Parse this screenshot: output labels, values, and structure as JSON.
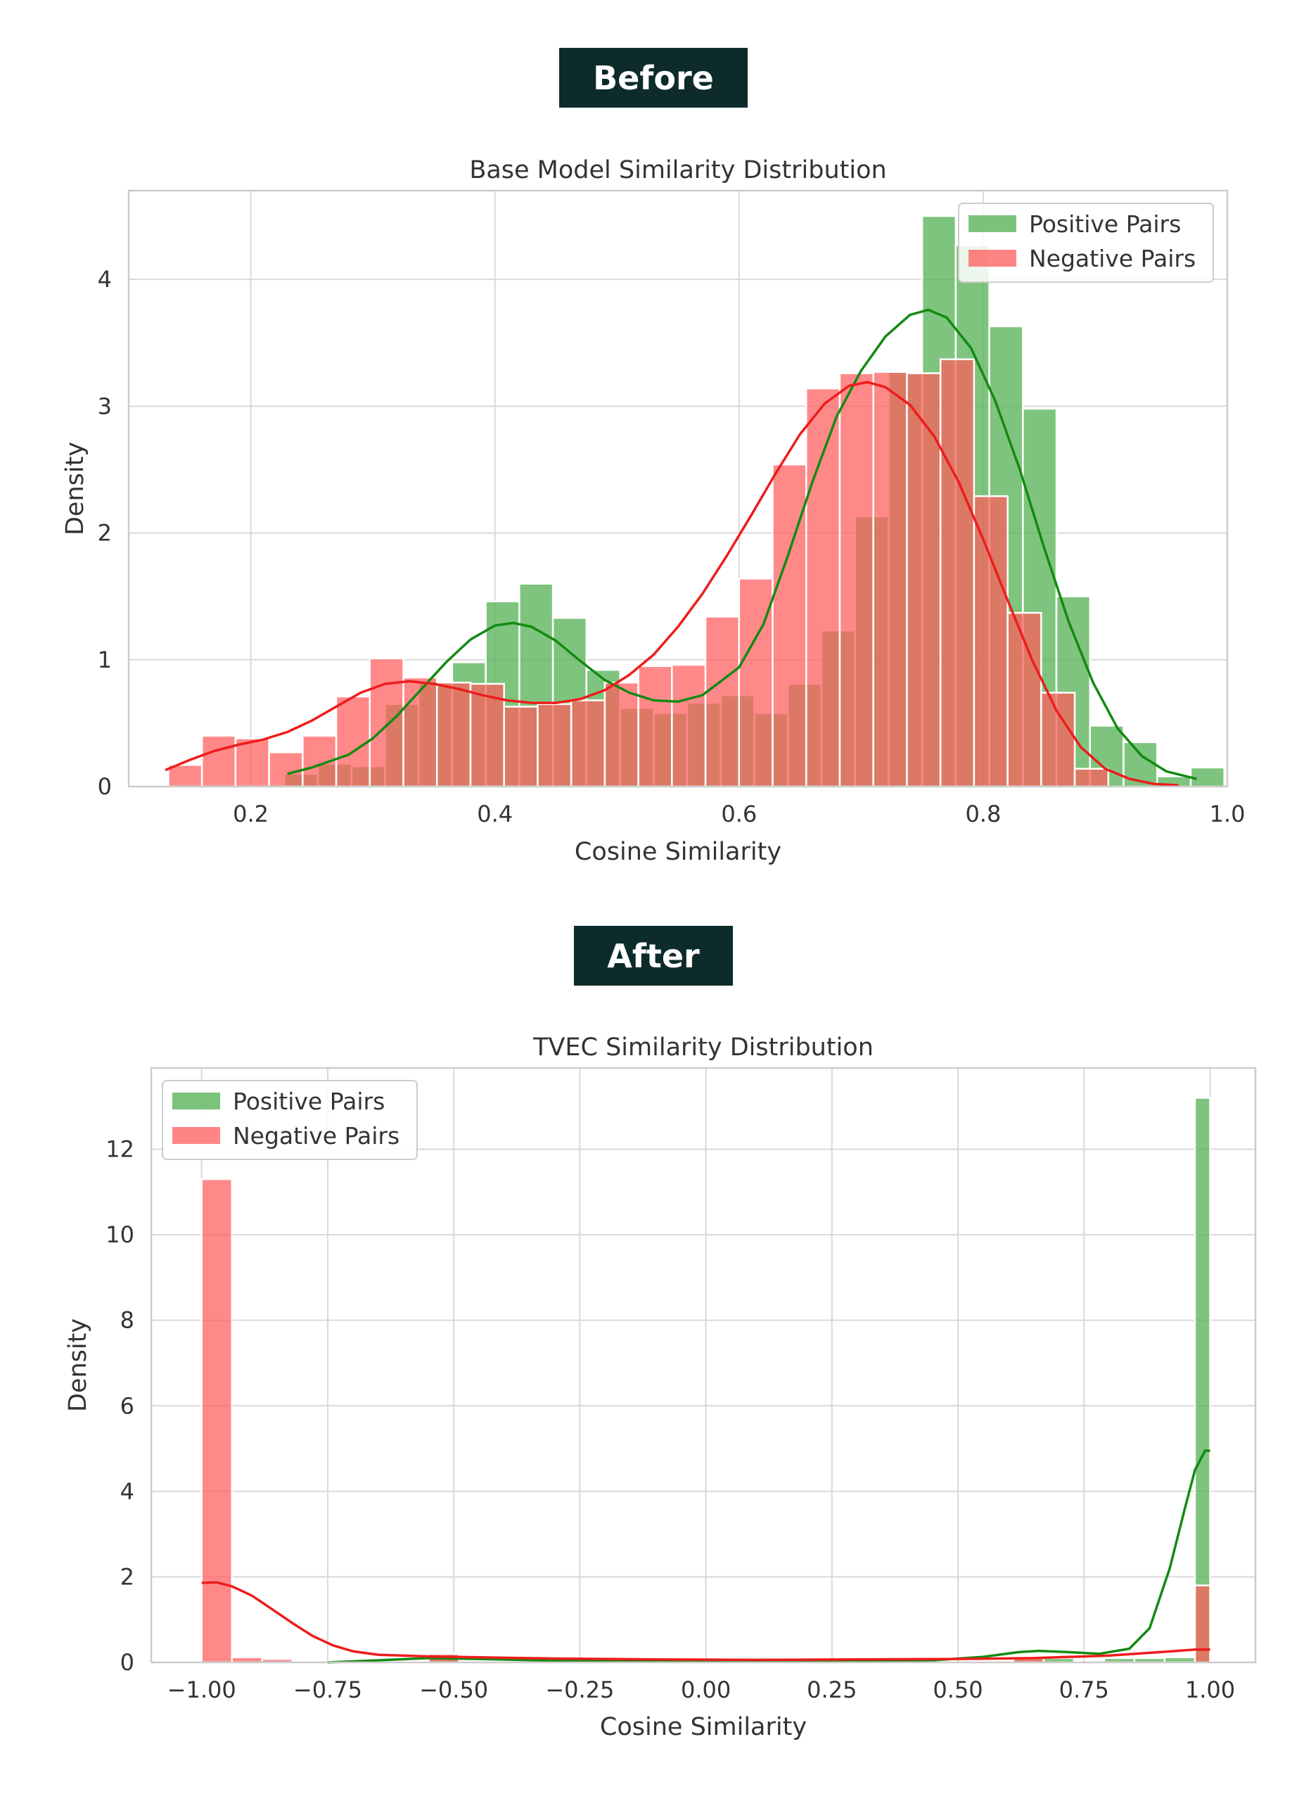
{
  "sections": {
    "before_label": "Before",
    "after_label": "After"
  },
  "colors": {
    "positive_fill": "#5ab45a",
    "negative_fill": "#ff5c5c",
    "positive_line": "#138a13",
    "negative_line": "#ee1c1c",
    "badge_bg": "#0e2b2b"
  },
  "chart_data": [
    {
      "type": "histogram",
      "title": "Base Model Similarity Distribution",
      "xlabel": "Cosine Similarity",
      "ylabel": "Density",
      "xlim": [
        0.1,
        1.0
      ],
      "ylim": [
        0,
        4.7
      ],
      "xticks": [
        "0.2",
        "0.4",
        "0.6",
        "0.8",
        "1.0"
      ],
      "xtick_values": [
        0.2,
        0.4,
        0.6,
        0.8,
        1.0
      ],
      "yticks": [
        "0",
        "1",
        "2",
        "3",
        "4"
      ],
      "ytick_values": [
        0,
        1,
        2,
        3,
        4
      ],
      "grid": true,
      "legend_position": "top-right",
      "series": [
        {
          "name": "Positive Pairs",
          "bins": [
            [
              0.2275,
              0.255,
              0.1
            ],
            [
              0.255,
              0.2825,
              0.18
            ],
            [
              0.2825,
              0.31,
              0.16
            ],
            [
              0.31,
              0.3375,
              0.65
            ],
            [
              0.3375,
              0.365,
              0.83
            ],
            [
              0.365,
              0.3925,
              0.98
            ],
            [
              0.3925,
              0.42,
              1.46
            ],
            [
              0.42,
              0.4475,
              1.6
            ],
            [
              0.4475,
              0.475,
              1.33
            ],
            [
              0.475,
              0.5025,
              0.92
            ],
            [
              0.5025,
              0.53,
              0.62
            ],
            [
              0.53,
              0.5575,
              0.58
            ],
            [
              0.5575,
              0.585,
              0.66
            ],
            [
              0.585,
              0.6125,
              0.72
            ],
            [
              0.6125,
              0.64,
              0.58
            ],
            [
              0.64,
              0.6675,
              0.81
            ],
            [
              0.6675,
              0.695,
              1.23
            ],
            [
              0.695,
              0.7225,
              2.13
            ],
            [
              0.7225,
              0.75,
              3.27
            ],
            [
              0.75,
              0.7775,
              4.5
            ],
            [
              0.7775,
              0.805,
              4.27
            ],
            [
              0.805,
              0.8325,
              3.63
            ],
            [
              0.8325,
              0.86,
              2.98
            ],
            [
              0.86,
              0.8875,
              1.5
            ],
            [
              0.8875,
              0.915,
              0.48
            ],
            [
              0.915,
              0.9425,
              0.35
            ],
            [
              0.9425,
              0.97,
              0.08
            ],
            [
              0.97,
              0.9975,
              0.15
            ]
          ],
          "kde": [
            [
              0.23,
              0.1
            ],
            [
              0.25,
              0.15
            ],
            [
              0.28,
              0.25
            ],
            [
              0.3,
              0.38
            ],
            [
              0.32,
              0.56
            ],
            [
              0.34,
              0.77
            ],
            [
              0.36,
              0.98
            ],
            [
              0.38,
              1.16
            ],
            [
              0.4,
              1.27
            ],
            [
              0.415,
              1.29
            ],
            [
              0.43,
              1.26
            ],
            [
              0.45,
              1.15
            ],
            [
              0.47,
              0.99
            ],
            [
              0.49,
              0.84
            ],
            [
              0.51,
              0.74
            ],
            [
              0.53,
              0.68
            ],
            [
              0.55,
              0.67
            ],
            [
              0.57,
              0.72
            ],
            [
              0.6,
              0.94
            ],
            [
              0.62,
              1.28
            ],
            [
              0.64,
              1.82
            ],
            [
              0.66,
              2.4
            ],
            [
              0.68,
              2.92
            ],
            [
              0.7,
              3.28
            ],
            [
              0.72,
              3.55
            ],
            [
              0.74,
              3.72
            ],
            [
              0.755,
              3.76
            ],
            [
              0.77,
              3.7
            ],
            [
              0.79,
              3.46
            ],
            [
              0.81,
              3.04
            ],
            [
              0.83,
              2.5
            ],
            [
              0.85,
              1.88
            ],
            [
              0.87,
              1.3
            ],
            [
              0.89,
              0.82
            ],
            [
              0.91,
              0.46
            ],
            [
              0.93,
              0.24
            ],
            [
              0.95,
              0.12
            ],
            [
              0.975,
              0.06
            ]
          ]
        },
        {
          "name": "Negative Pairs",
          "bins": [
            [
              0.1325,
              0.16,
              0.17
            ],
            [
              0.16,
              0.1875,
              0.4
            ],
            [
              0.1875,
              0.215,
              0.38
            ],
            [
              0.215,
              0.2425,
              0.27
            ],
            [
              0.2425,
              0.27,
              0.4
            ],
            [
              0.27,
              0.2975,
              0.71
            ],
            [
              0.2975,
              0.325,
              1.01
            ],
            [
              0.325,
              0.3525,
              0.86
            ],
            [
              0.3525,
              0.38,
              0.82
            ],
            [
              0.38,
              0.4075,
              0.81
            ],
            [
              0.4075,
              0.435,
              0.63
            ],
            [
              0.435,
              0.4625,
              0.65
            ],
            [
              0.4625,
              0.49,
              0.68
            ],
            [
              0.49,
              0.5175,
              0.82
            ],
            [
              0.5175,
              0.545,
              0.95
            ],
            [
              0.545,
              0.5725,
              0.96
            ],
            [
              0.5725,
              0.6,
              1.34
            ],
            [
              0.6,
              0.6275,
              1.64
            ],
            [
              0.6275,
              0.655,
              2.54
            ],
            [
              0.655,
              0.6825,
              3.14
            ],
            [
              0.6825,
              0.71,
              3.26
            ],
            [
              0.71,
              0.7375,
              3.27
            ],
            [
              0.7375,
              0.765,
              3.26
            ],
            [
              0.765,
              0.7925,
              3.37
            ],
            [
              0.7925,
              0.82,
              2.29
            ],
            [
              0.82,
              0.8475,
              1.37
            ],
            [
              0.8475,
              0.875,
              0.74
            ],
            [
              0.875,
              0.9025,
              0.14
            ]
          ],
          "kde": [
            [
              0.13,
              0.13
            ],
            [
              0.15,
              0.21
            ],
            [
              0.17,
              0.28
            ],
            [
              0.19,
              0.33
            ],
            [
              0.21,
              0.37
            ],
            [
              0.23,
              0.43
            ],
            [
              0.25,
              0.52
            ],
            [
              0.27,
              0.63
            ],
            [
              0.29,
              0.74
            ],
            [
              0.31,
              0.81
            ],
            [
              0.33,
              0.83
            ],
            [
              0.35,
              0.81
            ],
            [
              0.37,
              0.77
            ],
            [
              0.39,
              0.72
            ],
            [
              0.41,
              0.68
            ],
            [
              0.43,
              0.66
            ],
            [
              0.45,
              0.66
            ],
            [
              0.47,
              0.69
            ],
            [
              0.49,
              0.76
            ],
            [
              0.51,
              0.88
            ],
            [
              0.53,
              1.04
            ],
            [
              0.55,
              1.26
            ],
            [
              0.57,
              1.52
            ],
            [
              0.59,
              1.82
            ],
            [
              0.61,
              2.14
            ],
            [
              0.63,
              2.47
            ],
            [
              0.65,
              2.78
            ],
            [
              0.67,
              3.02
            ],
            [
              0.69,
              3.16
            ],
            [
              0.705,
              3.19
            ],
            [
              0.72,
              3.15
            ],
            [
              0.74,
              3.01
            ],
            [
              0.76,
              2.76
            ],
            [
              0.78,
              2.4
            ],
            [
              0.8,
              1.95
            ],
            [
              0.82,
              1.47
            ],
            [
              0.84,
              1.0
            ],
            [
              0.86,
              0.6
            ],
            [
              0.88,
              0.31
            ],
            [
              0.9,
              0.14
            ],
            [
              0.92,
              0.06
            ],
            [
              0.94,
              0.02
            ],
            [
              0.96,
              0.01
            ]
          ]
        }
      ]
    },
    {
      "type": "histogram",
      "title": "TVEC Similarity Distribution",
      "xlabel": "Cosine Similarity",
      "ylabel": "Density",
      "xlim": [
        -1.1,
        1.09
      ],
      "ylim": [
        0,
        13.9
      ],
      "xticks": [
        "−1.00",
        "−0.75",
        "−0.50",
        "−0.25",
        "0.00",
        "0.25",
        "0.50",
        "0.75",
        "1.00"
      ],
      "xtick_values": [
        -1.0,
        -0.75,
        -0.5,
        -0.25,
        0.0,
        0.25,
        0.5,
        0.75,
        1.0
      ],
      "yticks": [
        "0",
        "2",
        "4",
        "6",
        "8",
        "10",
        "12"
      ],
      "ytick_values": [
        0,
        2,
        4,
        6,
        8,
        10,
        12
      ],
      "grid": true,
      "legend_position": "top-left",
      "series": [
        {
          "name": "Positive Pairs",
          "bins": [
            [
              -0.55,
              -0.49,
              0.1
            ],
            [
              0.61,
              0.67,
              0.08
            ],
            [
              0.67,
              0.73,
              0.1
            ],
            [
              0.79,
              0.85,
              0.1
            ],
            [
              0.85,
              0.91,
              0.1
            ],
            [
              0.91,
              0.97,
              0.12
            ],
            [
              0.97,
              1.0,
              13.2
            ]
          ],
          "kde": [
            [
              -0.75,
              0.0
            ],
            [
              -0.65,
              0.05
            ],
            [
              -0.55,
              0.1
            ],
            [
              -0.45,
              0.08
            ],
            [
              -0.3,
              0.04
            ],
            [
              -0.1,
              0.02
            ],
            [
              0.1,
              0.02
            ],
            [
              0.3,
              0.03
            ],
            [
              0.45,
              0.05
            ],
            [
              0.55,
              0.13
            ],
            [
              0.62,
              0.24
            ],
            [
              0.66,
              0.27
            ],
            [
              0.72,
              0.24
            ],
            [
              0.78,
              0.2
            ],
            [
              0.84,
              0.32
            ],
            [
              0.88,
              0.8
            ],
            [
              0.92,
              2.2
            ],
            [
              0.95,
              3.6
            ],
            [
              0.97,
              4.5
            ],
            [
              0.99,
              4.95
            ],
            [
              1.0,
              4.95
            ]
          ]
        },
        {
          "name": "Negative Pairs",
          "bins": [
            [
              -1.0,
              -0.94,
              11.3
            ],
            [
              -0.94,
              -0.88,
              0.12
            ],
            [
              -0.88,
              -0.82,
              0.08
            ],
            [
              -0.55,
              -0.49,
              0.2
            ],
            [
              0.31,
              0.37,
              0.1
            ],
            [
              0.61,
              0.67,
              0.1
            ],
            [
              0.97,
              1.0,
              1.8
            ]
          ],
          "kde": [
            [
              -1.0,
              1.86
            ],
            [
              -0.97,
              1.87
            ],
            [
              -0.94,
              1.78
            ],
            [
              -0.9,
              1.56
            ],
            [
              -0.86,
              1.24
            ],
            [
              -0.82,
              0.92
            ],
            [
              -0.78,
              0.62
            ],
            [
              -0.74,
              0.4
            ],
            [
              -0.7,
              0.26
            ],
            [
              -0.65,
              0.18
            ],
            [
              -0.55,
              0.14
            ],
            [
              -0.45,
              0.12
            ],
            [
              -0.3,
              0.09
            ],
            [
              -0.1,
              0.07
            ],
            [
              0.1,
              0.06
            ],
            [
              0.3,
              0.07
            ],
            [
              0.5,
              0.08
            ],
            [
              0.65,
              0.1
            ],
            [
              0.8,
              0.16
            ],
            [
              0.9,
              0.24
            ],
            [
              0.97,
              0.3
            ],
            [
              1.0,
              0.3
            ]
          ]
        }
      ]
    }
  ]
}
